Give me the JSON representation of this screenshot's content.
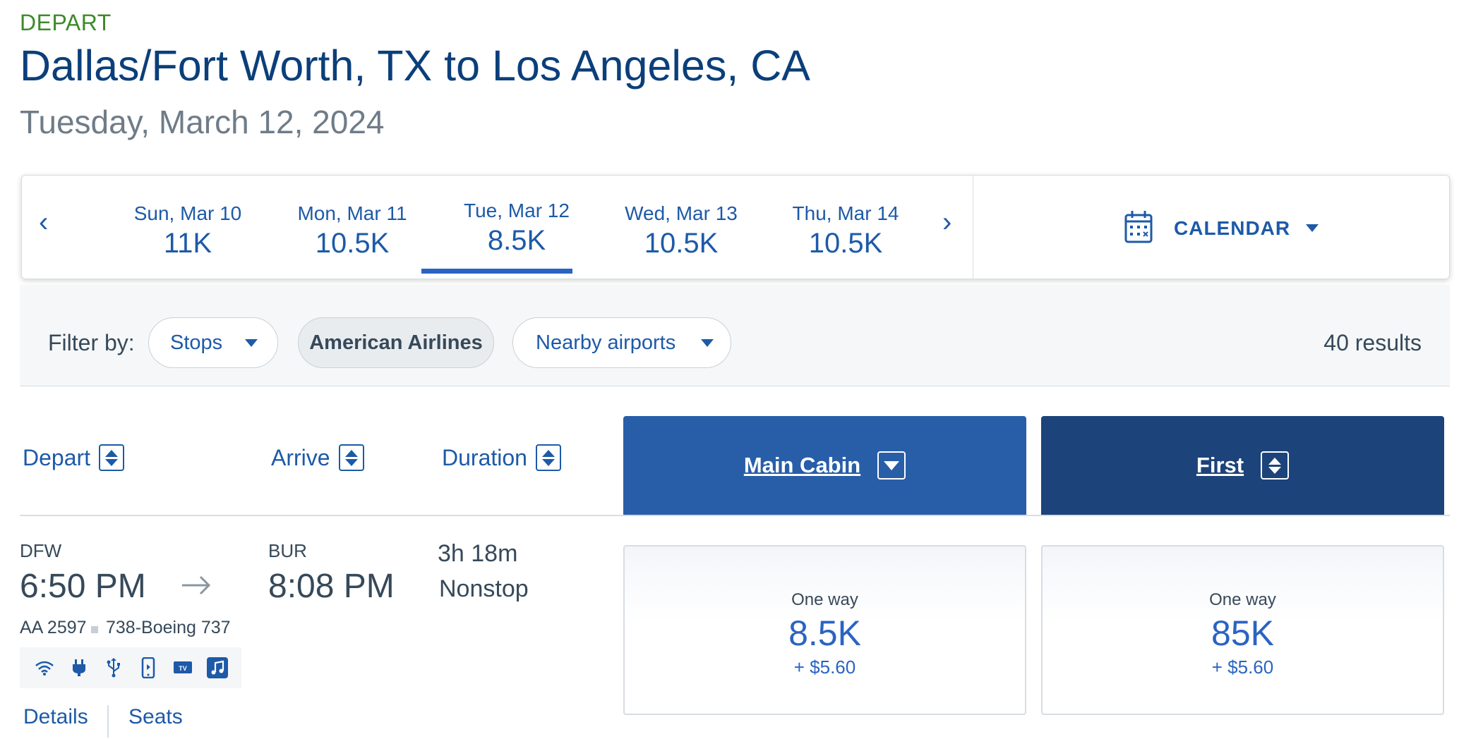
{
  "header": {
    "depart_label": "DEPART",
    "route_title": "Dallas/Fort Worth, TX to Los Angeles, CA",
    "date": "Tuesday, March 12, 2024"
  },
  "date_strip": {
    "prev_arrow": "‹",
    "next_arrow": "›",
    "dates": [
      {
        "day": "Sun, Mar 10",
        "price": "11K"
      },
      {
        "day": "Mon, Mar 11",
        "price": "10.5K"
      },
      {
        "day": "Tue, Mar 12",
        "price": "8.5K",
        "selected": true
      },
      {
        "day": "Wed, Mar 13",
        "price": "10.5K"
      },
      {
        "day": "Thu, Mar 14",
        "price": "10.5K"
      }
    ],
    "calendar_label": "CALENDAR",
    "calendar_icon": "calendar-icon"
  },
  "filters": {
    "label": "Filter by:",
    "stops": "Stops",
    "airline": "American Airlines",
    "nearby": "Nearby airports",
    "results": "40 results"
  },
  "columns": {
    "depart": "Depart",
    "arrive": "Arrive",
    "duration": "Duration",
    "main_cabin": "Main Cabin",
    "first": "First"
  },
  "flight": {
    "origin": "DFW",
    "depart_time": "6:50 PM",
    "destination": "BUR",
    "arrive_time": "8:08 PM",
    "duration": "3h 18m",
    "stops": "Nonstop",
    "flight_number": "AA 2597",
    "aircraft": "738-Boeing 737",
    "amenities": [
      "wifi-icon",
      "power-plug-icon",
      "usb-icon",
      "phone-entertainment-icon",
      "tv-icon",
      "music-icon"
    ],
    "details_link": "Details",
    "seats_link": "Seats"
  },
  "fares": {
    "main_cabin": {
      "label": "One way",
      "points": "8.5K",
      "tax": "+ $5.60"
    },
    "first": {
      "label": "One way",
      "points": "85K",
      "tax": "+ $5.60"
    }
  },
  "colors": {
    "main_cabin_header": "#285ea8",
    "first_header": "#1c437a",
    "link_blue": "#1d5aa8",
    "depart_green": "#3e8a2a"
  }
}
